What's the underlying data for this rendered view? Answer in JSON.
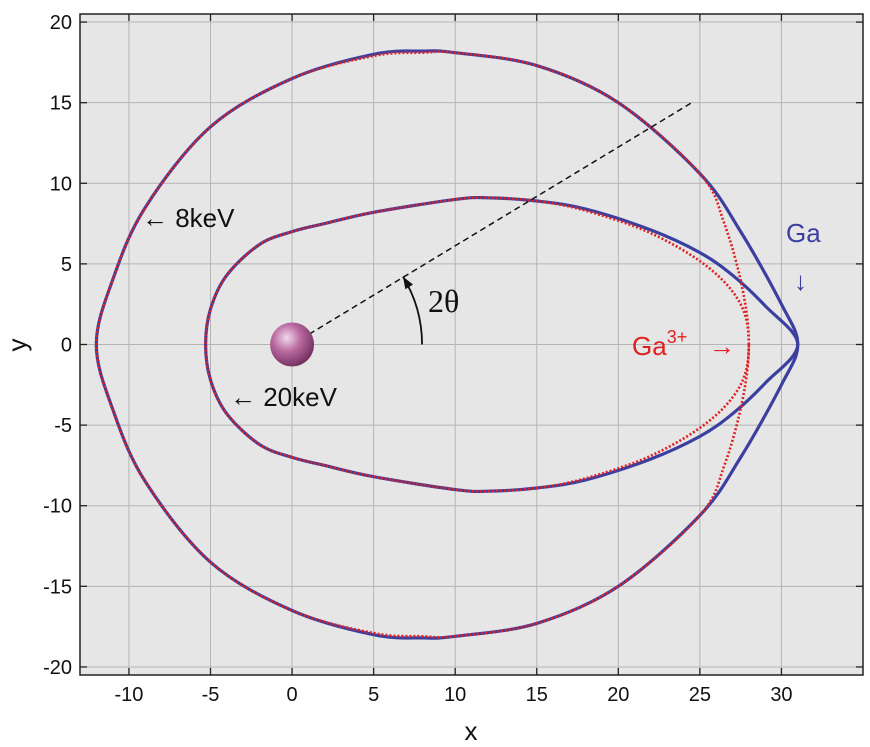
{
  "chart_data": {
    "type": "line",
    "title": "",
    "xlabel": "x",
    "ylabel": "y",
    "xlim": [
      -13,
      35
    ],
    "ylim": [
      -20.5,
      20.5
    ],
    "xticks": [
      -10,
      -5,
      0,
      5,
      10,
      15,
      20,
      25,
      30
    ],
    "yticks": [
      -20,
      -15,
      -10,
      -5,
      0,
      5,
      10,
      15,
      20
    ],
    "grid": true,
    "background": "#e6e6e6",
    "series": [
      {
        "color": "#3b3fa0",
        "style": "solid",
        "points": [
          [
            31,
            0
          ],
          [
            30,
            2.5
          ],
          [
            27.5,
            7
          ],
          [
            25,
            10.6
          ],
          [
            20,
            15
          ],
          [
            15,
            17.3
          ],
          [
            10,
            18.1
          ],
          [
            8,
            18.2
          ],
          [
            5,
            18
          ],
          [
            0,
            16.5
          ],
          [
            -5,
            13.5
          ],
          [
            -9,
            8.5
          ],
          [
            -11,
            4
          ],
          [
            -12,
            0
          ],
          [
            -11,
            -4
          ],
          [
            -9,
            -8.5
          ],
          [
            -5,
            -13.5
          ],
          [
            0,
            -16.5
          ],
          [
            5,
            -18
          ],
          [
            8,
            -18.2
          ],
          [
            10,
            -18.1
          ],
          [
            15,
            -17.3
          ],
          [
            20,
            -15
          ],
          [
            25,
            -10.6
          ],
          [
            27.5,
            -7
          ],
          [
            30,
            -2.5
          ],
          [
            31,
            0
          ]
        ]
      },
      {
        "color": "#3b3fa0",
        "style": "solid",
        "points": [
          [
            31,
            0
          ],
          [
            29,
            2.4
          ],
          [
            27,
            4.3
          ],
          [
            25,
            5.7
          ],
          [
            22,
            7.1
          ],
          [
            18,
            8.4
          ],
          [
            15,
            8.9
          ],
          [
            12,
            9.1
          ],
          [
            10,
            9
          ],
          [
            5,
            8.2
          ],
          [
            2,
            7.5
          ],
          [
            0,
            7
          ],
          [
            -2,
            6.2
          ],
          [
            -4,
            4.3
          ],
          [
            -5,
            2.2
          ],
          [
            -5.3,
            0
          ],
          [
            -5,
            -2.2
          ],
          [
            -4,
            -4.3
          ],
          [
            -2,
            -6.2
          ],
          [
            0,
            -7
          ],
          [
            2,
            -7.5
          ],
          [
            5,
            -8.2
          ],
          [
            10,
            -9
          ],
          [
            12,
            -9.1
          ],
          [
            15,
            -8.9
          ],
          [
            18,
            -8.4
          ],
          [
            22,
            -7.1
          ],
          [
            25,
            -5.7
          ],
          [
            27,
            -4.3
          ],
          [
            29,
            -2.4
          ],
          [
            31,
            0
          ]
        ]
      },
      {
        "color": "#e02020",
        "style": "dotted",
        "points": [
          [
            28,
            0
          ],
          [
            27.6,
            3.5
          ],
          [
            26.5,
            7.5
          ],
          [
            25,
            10.6
          ],
          [
            20,
            15
          ],
          [
            15,
            17.3
          ],
          [
            10,
            18.1
          ],
          [
            8,
            18.1
          ],
          [
            5,
            17.9
          ],
          [
            0,
            16.5
          ],
          [
            -5,
            13.5
          ],
          [
            -9,
            8.5
          ],
          [
            -11,
            4
          ],
          [
            -12,
            0
          ],
          [
            -11,
            -4
          ],
          [
            -9,
            -8.5
          ],
          [
            -5,
            -13.5
          ],
          [
            0,
            -16.5
          ],
          [
            5,
            -17.9
          ],
          [
            8,
            -18.1
          ],
          [
            10,
            -18.1
          ],
          [
            15,
            -17.3
          ],
          [
            20,
            -15
          ],
          [
            25,
            -10.6
          ],
          [
            26.5,
            -7.5
          ],
          [
            27.6,
            -3.5
          ],
          [
            28,
            0
          ]
        ]
      },
      {
        "color": "#e02020",
        "style": "dotted",
        "points": [
          [
            28,
            0
          ],
          [
            27.5,
            2.5
          ],
          [
            25.5,
            4.8
          ],
          [
            22,
            6.9
          ],
          [
            18,
            8.3
          ],
          [
            15,
            8.9
          ],
          [
            12,
            9.1
          ],
          [
            10,
            9
          ],
          [
            5,
            8.2
          ],
          [
            2,
            7.5
          ],
          [
            0,
            7
          ],
          [
            -2,
            6.2
          ],
          [
            -4,
            4.3
          ],
          [
            -5,
            2.2
          ],
          [
            -5.3,
            0
          ],
          [
            -5,
            -2.2
          ],
          [
            -4,
            -4.3
          ],
          [
            -2,
            -6.2
          ],
          [
            0,
            -7
          ],
          [
            2,
            -7.5
          ],
          [
            5,
            -8.2
          ],
          [
            10,
            -9
          ],
          [
            12,
            -9.1
          ],
          [
            15,
            -8.9
          ],
          [
            18,
            -8.3
          ],
          [
            22,
            -6.9
          ],
          [
            25.5,
            -4.8
          ],
          [
            27.5,
            -2.5
          ],
          [
            28,
            0
          ]
        ]
      }
    ],
    "dashed_line": {
      "from": [
        0,
        0
      ],
      "to": [
        24.5,
        15
      ]
    },
    "sphere": {
      "x": 0,
      "y": 0,
      "color": "#b05a94"
    },
    "annotations": {
      "label_8kev": "← 8keV",
      "label_20kev": "← 20keV",
      "label_2theta": "2θ",
      "label_ga": "Ga",
      "arrow_ga": "↓",
      "label_ga3": "Ga",
      "label_ga3_sup": "3+",
      "arrow_ga3": "→"
    }
  }
}
